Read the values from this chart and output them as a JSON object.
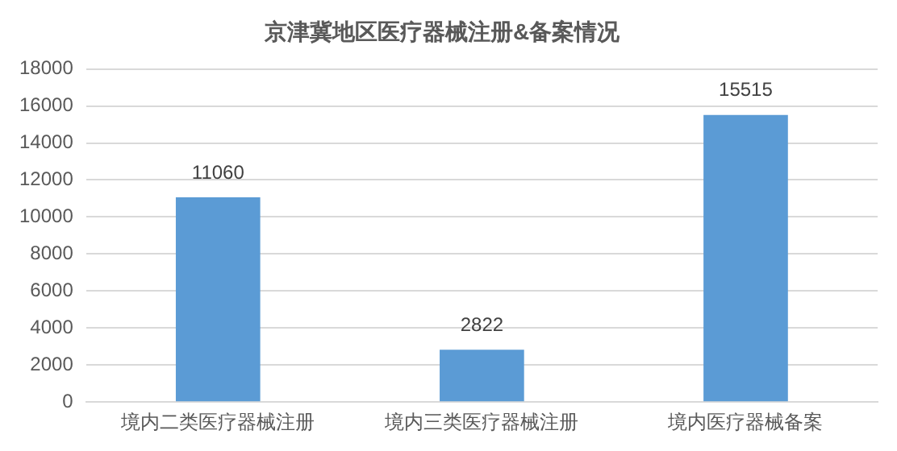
{
  "chart_data": {
    "type": "bar",
    "title": "京津冀地区医疗器械注册&备案情况",
    "categories": [
      "境内二类医疗器械注册",
      "境内三类医疗器械注册",
      "境内医疗器械备案"
    ],
    "values": [
      11060,
      2822,
      15515
    ],
    "color": "#5b9bd5",
    "ylim": [
      0,
      18000
    ],
    "yticks": [
      0,
      2000,
      4000,
      6000,
      8000,
      10000,
      12000,
      14000,
      16000,
      18000
    ],
    "grid": "y",
    "legend": false,
    "data_labels": true
  }
}
